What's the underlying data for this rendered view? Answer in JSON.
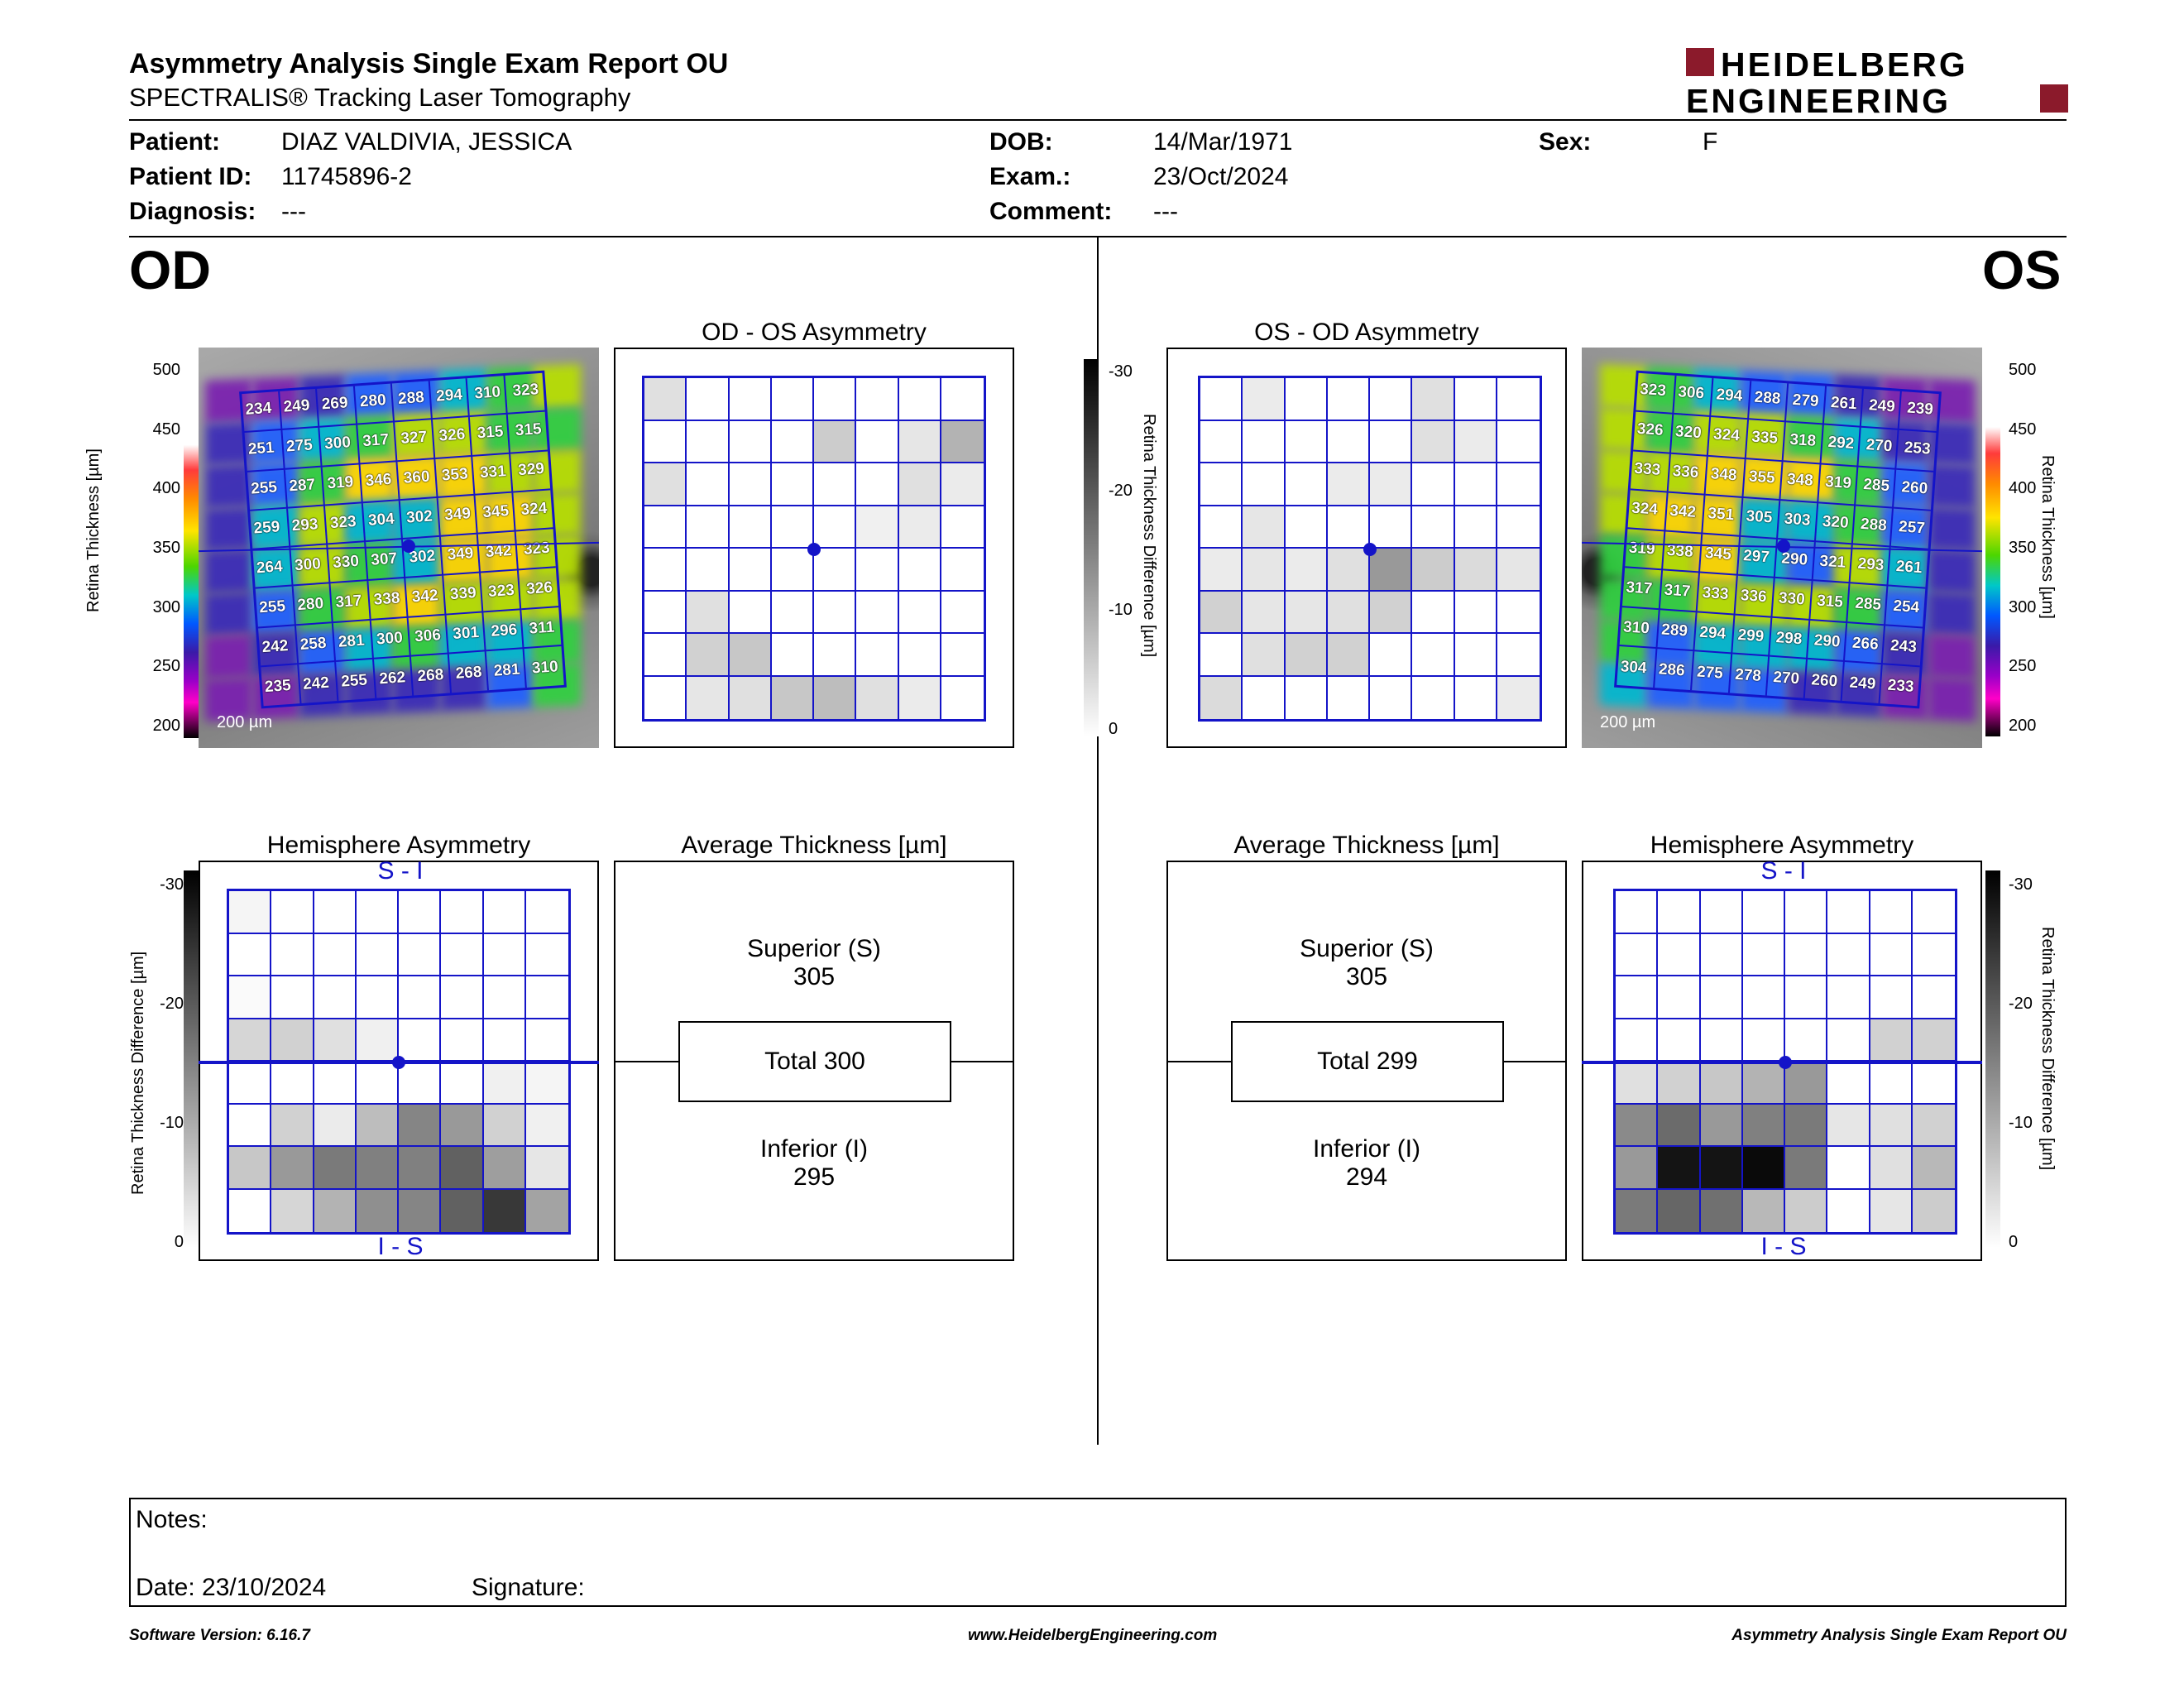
{
  "header": {
    "title": "Asymmetry Analysis Single Exam Report OU",
    "subtitle": "SPECTRALIS® Tracking Laser Tomography",
    "logo_line1": "HEIDELBERG",
    "logo_line2": "ENGINEERING",
    "logo_accent": "#8b1a2b"
  },
  "patient": {
    "patient_label": "Patient:",
    "patient_value": "DIAZ VALDIVIA, JESSICA",
    "id_label": "Patient ID:",
    "id_value": "11745896-2",
    "diagnosis_label": "Diagnosis:",
    "diagnosis_value": "---",
    "dob_label": "DOB:",
    "dob_value": "14/Mar/1971",
    "exam_label": "Exam.:",
    "exam_value": "23/Oct/2024",
    "comment_label": "Comment:",
    "comment_value": "---",
    "sex_label": "Sex:",
    "sex_value": "F"
  },
  "od": {
    "eye_label": "OD",
    "asym_title": "OD - OS Asymmetry",
    "hemi_title": "Hemisphere Asymmetry",
    "avg_title": "Average Thickness [µm]",
    "superior_label": "Superior (S)",
    "superior_value": "305",
    "total_label": "Total 300",
    "inferior_label": "Inferior (I)",
    "inferior_value": "295",
    "scale_label": "200 µm",
    "hemi_top": "S - I",
    "hemi_bottom": "I - S",
    "thickness": [
      [
        234,
        249,
        269,
        280,
        288,
        294,
        310,
        323
      ],
      [
        251,
        275,
        300,
        317,
        327,
        326,
        315,
        315
      ],
      [
        255,
        287,
        319,
        346,
        360,
        353,
        331,
        329
      ],
      [
        259,
        293,
        323,
        304,
        302,
        349,
        345,
        324
      ],
      [
        264,
        300,
        330,
        307,
        302,
        349,
        342,
        323
      ],
      [
        255,
        280,
        317,
        338,
        342,
        339,
        323,
        326
      ],
      [
        242,
        258,
        281,
        300,
        306,
        301,
        296,
        311
      ],
      [
        235,
        242,
        255,
        262,
        268,
        268,
        281,
        310
      ]
    ],
    "asym_grid": [
      [
        12,
        0,
        0,
        0,
        0,
        0,
        0,
        0
      ],
      [
        0,
        0,
        0,
        0,
        20,
        0,
        10,
        30
      ],
      [
        12,
        0,
        0,
        0,
        0,
        0,
        12,
        8
      ],
      [
        0,
        0,
        0,
        0,
        0,
        6,
        8,
        0
      ],
      [
        0,
        0,
        0,
        0,
        0,
        0,
        0,
        0
      ],
      [
        0,
        12,
        0,
        0,
        0,
        0,
        0,
        0
      ],
      [
        0,
        18,
        22,
        0,
        0,
        0,
        0,
        0
      ],
      [
        0,
        10,
        12,
        22,
        26,
        12,
        8,
        0
      ]
    ],
    "hemi_grid": [
      [
        4,
        0,
        0,
        0,
        0,
        0,
        0,
        0
      ],
      [
        0,
        0,
        0,
        0,
        0,
        0,
        0,
        0
      ],
      [
        2,
        0,
        0,
        0,
        0,
        0,
        0,
        0
      ],
      [
        16,
        18,
        12,
        6,
        0,
        0,
        0,
        0
      ],
      [
        0,
        0,
        0,
        0,
        0,
        0,
        6,
        4
      ],
      [
        0,
        18,
        8,
        26,
        48,
        40,
        18,
        6
      ],
      [
        22,
        40,
        52,
        50,
        50,
        62,
        38,
        10
      ],
      [
        0,
        16,
        30,
        44,
        48,
        62,
        78,
        36
      ]
    ]
  },
  "os": {
    "eye_label": "OS",
    "asym_title": "OS - OD Asymmetry",
    "hemi_title": "Hemisphere Asymmetry",
    "avg_title": "Average Thickness [µm]",
    "superior_label": "Superior (S)",
    "superior_value": "305",
    "total_label": "Total 299",
    "inferior_label": "Inferior (I)",
    "inferior_value": "294",
    "scale_label": "200 µm",
    "hemi_top": "S - I",
    "hemi_bottom": "I - S",
    "thickness": [
      [
        323,
        306,
        294,
        288,
        279,
        261,
        249,
        239
      ],
      [
        326,
        320,
        324,
        335,
        318,
        292,
        270,
        253
      ],
      [
        333,
        336,
        348,
        355,
        348,
        319,
        285,
        260
      ],
      [
        324,
        342,
        351,
        305,
        303,
        320,
        288,
        257
      ],
      [
        319,
        338,
        345,
        297,
        290,
        321,
        293,
        261
      ],
      [
        317,
        317,
        333,
        336,
        330,
        315,
        285,
        254
      ],
      [
        310,
        289,
        294,
        299,
        298,
        290,
        266,
        243
      ],
      [
        304,
        286,
        275,
        278,
        270,
        260,
        249,
        233
      ]
    ],
    "asym_grid": [
      [
        0,
        8,
        0,
        0,
        0,
        12,
        0,
        0
      ],
      [
        0,
        0,
        0,
        0,
        0,
        12,
        8,
        0
      ],
      [
        0,
        0,
        0,
        8,
        8,
        0,
        0,
        0
      ],
      [
        0,
        10,
        0,
        0,
        0,
        0,
        0,
        0
      ],
      [
        8,
        10,
        8,
        12,
        40,
        20,
        14,
        10
      ],
      [
        18,
        10,
        10,
        12,
        18,
        0,
        0,
        0
      ],
      [
        0,
        12,
        18,
        18,
        0,
        0,
        0,
        0
      ],
      [
        14,
        0,
        0,
        0,
        0,
        0,
        0,
        8
      ]
    ],
    "hemi_grid": [
      [
        0,
        0,
        0,
        0,
        0,
        0,
        0,
        0
      ],
      [
        0,
        0,
        0,
        0,
        0,
        0,
        0,
        0
      ],
      [
        0,
        0,
        0,
        0,
        0,
        0,
        0,
        0
      ],
      [
        0,
        0,
        0,
        0,
        0,
        0,
        18,
        18
      ],
      [
        12,
        18,
        22,
        30,
        40,
        0,
        0,
        0
      ],
      [
        46,
        58,
        40,
        50,
        52,
        10,
        12,
        18
      ],
      [
        40,
        92,
        92,
        96,
        52,
        0,
        12,
        28
      ],
      [
        52,
        60,
        56,
        28,
        20,
        0,
        10,
        20
      ]
    ]
  },
  "axes": {
    "thickness_title": "Retina Thickness [µm]",
    "thickness_ticks": [
      "500",
      "450",
      "400",
      "350",
      "300",
      "250",
      "200"
    ],
    "diff_title": "Retina Thickness Difference [µm]",
    "diff_ticks": [
      "-30",
      "-20",
      "-10",
      "0"
    ]
  },
  "notes": {
    "notes_label": "Notes:",
    "date_label": "Date: 23/10/2024",
    "signature_label": "Signature:"
  },
  "footer": {
    "version": "Software Version: 6.16.7",
    "website": "www.HeidelbergEngineering.com",
    "report_name": "Asymmetry Analysis Single Exam Report OU"
  }
}
